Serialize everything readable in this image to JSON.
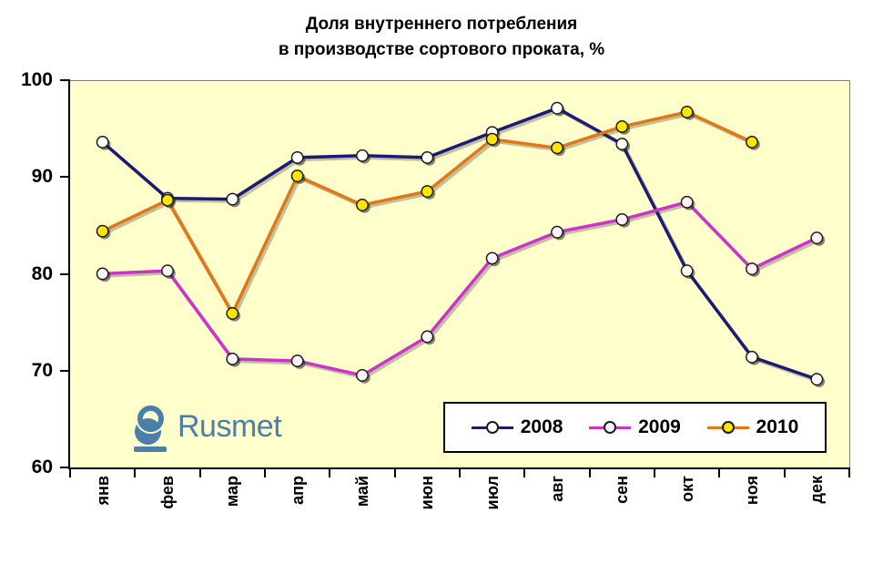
{
  "title": {
    "line1": "Доля внутреннего потребления",
    "line2": "в производстве сортового проката, %"
  },
  "logo": {
    "text": "Rusmet",
    "color": "#4a7fa9"
  },
  "chart_data": {
    "type": "line",
    "title": "Доля внутреннего потребления в производстве сортового проката, %",
    "categories": [
      "янв",
      "фев",
      "мар",
      "апр",
      "май",
      "июн",
      "июл",
      "авг",
      "сен",
      "окт",
      "ноя",
      "дек"
    ],
    "series": [
      {
        "name": "2008",
        "color": "#1a1a78",
        "marker_fill": "#ffffff",
        "values": [
          93.7,
          87.9,
          87.8,
          92.1,
          92.3,
          92.1,
          94.7,
          97.2,
          93.5,
          80.4,
          71.5,
          69.2
        ]
      },
      {
        "name": "2009",
        "color": "#cc33cc",
        "marker_fill": "#fdf3fd",
        "values": [
          80.1,
          80.4,
          71.3,
          71.1,
          69.6,
          73.6,
          81.7,
          84.4,
          85.7,
          87.5,
          80.6,
          83.8
        ]
      },
      {
        "name": "2010",
        "color": "#e07818",
        "marker_fill": "#ffe600",
        "values": [
          84.5,
          87.7,
          76.0,
          90.2,
          87.2,
          88.6,
          94.0,
          93.1,
          95.3,
          96.8,
          93.7,
          null
        ]
      }
    ],
    "ylim": [
      60,
      100
    ],
    "yticks": [
      100,
      90,
      80,
      70,
      60
    ],
    "grid": false,
    "plot_background": "#ffffcc",
    "legend": {
      "position": "inside-bottom-right",
      "entries": [
        "2008",
        "2009",
        "2010"
      ]
    }
  }
}
